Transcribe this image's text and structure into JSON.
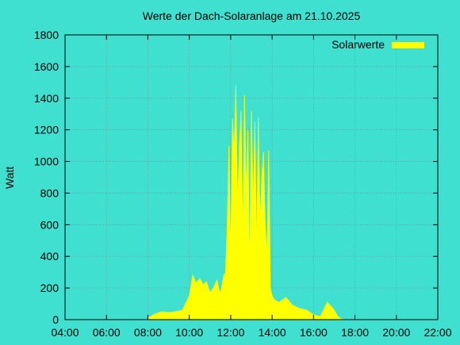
{
  "chart_data": {
    "type": "area",
    "title": "Werte der Dach-Solaranlage am 21.10.2025",
    "ylabel": "Watt",
    "xlabel": "",
    "xlim": [
      "04:00",
      "22:00"
    ],
    "ylim": [
      0,
      1800
    ],
    "xticks": [
      "04:00",
      "06:00",
      "08:00",
      "10:00",
      "12:00",
      "14:00",
      "16:00",
      "18:00",
      "20:00",
      "22:00"
    ],
    "yticks": [
      0,
      200,
      400,
      600,
      800,
      1000,
      1200,
      1400,
      1600,
      1800
    ],
    "grid": true,
    "legend_position": "top-right",
    "colors": {
      "background": "#40e0d0",
      "series": "#ffff00",
      "grid": "#808080",
      "axis": "#000000"
    },
    "series": [
      {
        "name": "Solarwerte",
        "x": [
          "08:00",
          "08:20",
          "08:40",
          "09:00",
          "09:20",
          "09:40",
          "10:00",
          "10:10",
          "10:20",
          "10:30",
          "10:40",
          "10:50",
          "11:00",
          "11:10",
          "11:20",
          "11:30",
          "11:40",
          "11:45",
          "11:50",
          "11:55",
          "12:00",
          "12:05",
          "12:10",
          "12:15",
          "12:20",
          "12:25",
          "12:30",
          "12:35",
          "12:40",
          "12:45",
          "12:50",
          "12:55",
          "13:00",
          "13:05",
          "13:10",
          "13:15",
          "13:20",
          "13:25",
          "13:30",
          "13:35",
          "13:40",
          "13:45",
          "13:50",
          "13:55",
          "14:00",
          "14:05",
          "14:10",
          "14:20",
          "14:40",
          "15:00",
          "15:20",
          "15:40",
          "16:00",
          "16:20",
          "16:40",
          "17:00",
          "17:10",
          "17:20",
          "17:30",
          "17:40"
        ],
        "values": [
          10,
          35,
          50,
          45,
          50,
          60,
          150,
          280,
          230,
          260,
          220,
          240,
          170,
          200,
          250,
          160,
          280,
          300,
          600,
          1100,
          400,
          1270,
          1050,
          1480,
          700,
          1100,
          1320,
          500,
          1420,
          800,
          1200,
          300,
          1320,
          700,
          1250,
          400,
          1280,
          600,
          900,
          1060,
          600,
          400,
          1070,
          200,
          150,
          130,
          120,
          110,
          140,
          90,
          70,
          60,
          30,
          20,
          110,
          60,
          20,
          5,
          0,
          0
        ]
      }
    ]
  }
}
